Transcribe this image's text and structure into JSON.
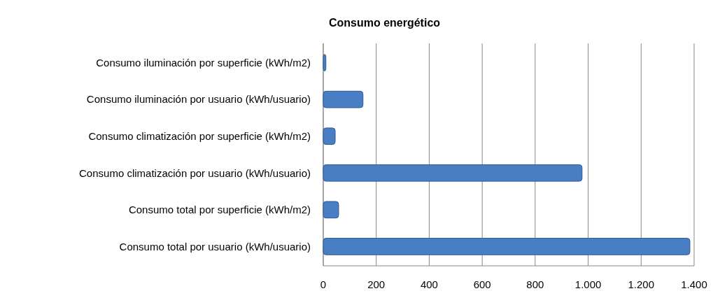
{
  "chart_data": {
    "type": "bar",
    "orientation": "horizontal",
    "title": "Consumo energético",
    "categories": [
      "Consumo iluminación por  superficie (kWh/m2)",
      "Consumo iluminación por usuario (kWh/usuario)",
      "Consumo climatización por superficie (kWh/m2)",
      "Consumo climatización por usuario (kWh/usuario)",
      "Consumo total por superficie (kWh/m2)",
      "Consumo total por usuario (kWh/usuario)"
    ],
    "values": [
      10,
      150,
      45,
      977,
      58,
      1384
    ],
    "color": "#4a7ec4",
    "xlim": [
      0,
      1400
    ],
    "xticks": [
      0,
      200,
      400,
      600,
      800,
      {
        "value": 1000,
        "label": "1.000"
      },
      {
        "value": 1200,
        "label": "1.200"
      },
      {
        "value": 1400,
        "label": "1.400"
      }
    ],
    "grid": "x"
  }
}
